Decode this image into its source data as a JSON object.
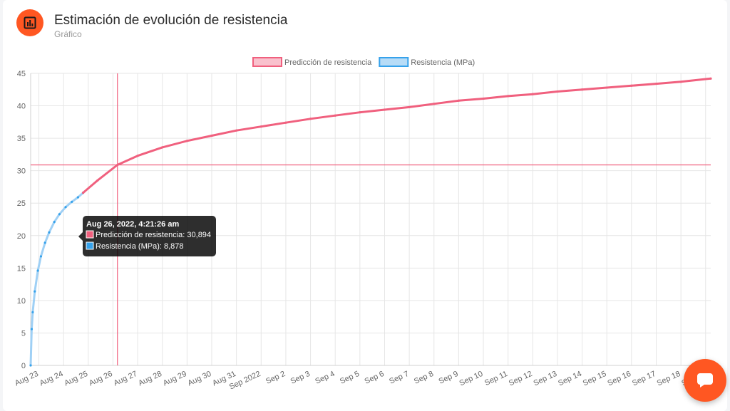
{
  "header": {
    "title": "Estimación de evolución de resistencia",
    "subtitle": "Gráfico",
    "icon": "bar-chart-icon"
  },
  "fab": {
    "icon": "chat-bubble-icon"
  },
  "colors": {
    "accent": "#ff5722",
    "prediction": "#f0607e",
    "resistance": "#36a2eb"
  },
  "chart_data": {
    "type": "line",
    "legend": [
      "Predicción de resistencia",
      "Resistencia (MPa)"
    ],
    "legend_position": "top-center",
    "grid": true,
    "yticks": [
      "0",
      "5",
      "10",
      "15",
      "20",
      "25",
      "30",
      "35",
      "40",
      "45"
    ],
    "ylim": [
      0,
      45
    ],
    "xlim": [
      "2022-08-22T16:00",
      "2022-09-19T05:00"
    ],
    "xticks": [
      "Aug 23",
      "Aug 24",
      "Aug 25",
      "Aug 26",
      "Aug 27",
      "Aug 28",
      "Aug 29",
      "Aug 30",
      "Aug 31",
      "Sep 2022",
      "Sep 2",
      "Sep 3",
      "Sep 4",
      "Sep 5",
      "Sep 6",
      "Sep 7",
      "Sep 8",
      "Sep 9",
      "Sep 10",
      "Sep 11",
      "Sep 12",
      "Sep 13",
      "Sep 14",
      "Sep 15",
      "Sep 16",
      "Sep 17",
      "Sep 18",
      "Sep 19"
    ],
    "xtick_dates": [
      "2022-08-23",
      "2022-08-24",
      "2022-08-25",
      "2022-08-26",
      "2022-08-27",
      "2022-08-28",
      "2022-08-29",
      "2022-08-30",
      "2022-08-31",
      "2022-09-01",
      "2022-09-02",
      "2022-09-03",
      "2022-09-04",
      "2022-09-05",
      "2022-09-06",
      "2022-09-07",
      "2022-09-08",
      "2022-09-09",
      "2022-09-10",
      "2022-09-11",
      "2022-09-12",
      "2022-09-13",
      "2022-09-14",
      "2022-09-15",
      "2022-09-16",
      "2022-09-17",
      "2022-09-18",
      "2022-09-19"
    ],
    "series": [
      {
        "name": "Resistencia (MPa)",
        "color": "#36a2eb",
        "points": [
          {
            "x": "2022-08-22T16:00",
            "y": 0
          },
          {
            "x": "2022-08-22T17:00",
            "y": 5.6
          },
          {
            "x": "2022-08-22T18:00",
            "y": 8.2
          },
          {
            "x": "2022-08-22T20:00",
            "y": 11.4
          },
          {
            "x": "2022-08-22T23:00",
            "y": 14.6
          },
          {
            "x": "2022-08-23T02:00",
            "y": 16.8
          },
          {
            "x": "2022-08-23T06:00",
            "y": 18.9
          },
          {
            "x": "2022-08-23T10:00",
            "y": 20.5
          },
          {
            "x": "2022-08-23T15:00",
            "y": 22.1
          },
          {
            "x": "2022-08-23T20:00",
            "y": 23.3
          },
          {
            "x": "2022-08-24T02:00",
            "y": 24.4
          },
          {
            "x": "2022-08-24T08:00",
            "y": 25.2
          },
          {
            "x": "2022-08-24T14:00",
            "y": 25.9
          },
          {
            "x": "2022-08-24T19:00",
            "y": 26.6
          }
        ]
      },
      {
        "name": "Predicción de resistencia",
        "color": "#f0607e",
        "points": [
          {
            "x": "2022-08-24T19:00",
            "y": 26.6
          },
          {
            "x": "2022-08-25T09:00",
            "y": 28.5
          },
          {
            "x": "2022-08-26T04:21",
            "y": 30.9
          },
          {
            "x": "2022-08-27T00:00",
            "y": 32.3
          },
          {
            "x": "2022-08-28T00:00",
            "y": 33.6
          },
          {
            "x": "2022-08-29T00:00",
            "y": 34.6
          },
          {
            "x": "2022-08-30T00:00",
            "y": 35.4
          },
          {
            "x": "2022-08-31T00:00",
            "y": 36.2
          },
          {
            "x": "2022-09-01T00:00",
            "y": 36.8
          },
          {
            "x": "2022-09-02T00:00",
            "y": 37.4
          },
          {
            "x": "2022-09-03T00:00",
            "y": 38.0
          },
          {
            "x": "2022-09-04T00:00",
            "y": 38.5
          },
          {
            "x": "2022-09-05T00:00",
            "y": 39.0
          },
          {
            "x": "2022-09-06T00:00",
            "y": 39.4
          },
          {
            "x": "2022-09-07T00:00",
            "y": 39.8
          },
          {
            "x": "2022-09-08T00:00",
            "y": 40.3
          },
          {
            "x": "2022-09-09T00:00",
            "y": 40.8
          },
          {
            "x": "2022-09-10T00:00",
            "y": 41.1
          },
          {
            "x": "2022-09-11T00:00",
            "y": 41.5
          },
          {
            "x": "2022-09-12T00:00",
            "y": 41.8
          },
          {
            "x": "2022-09-13T00:00",
            "y": 42.2
          },
          {
            "x": "2022-09-14T00:00",
            "y": 42.5
          },
          {
            "x": "2022-09-15T00:00",
            "y": 42.8
          },
          {
            "x": "2022-09-16T00:00",
            "y": 43.1
          },
          {
            "x": "2022-09-17T00:00",
            "y": 43.4
          },
          {
            "x": "2022-09-18T00:00",
            "y": 43.7
          },
          {
            "x": "2022-09-19T05:00",
            "y": 44.2
          }
        ]
      }
    ],
    "crosshair": {
      "x": "2022-08-26T04:21:26",
      "y": 30.894
    },
    "tooltip": {
      "title": "Aug 26, 2022, 4:21:26 am",
      "lines": [
        {
          "label": "Predicción de resistencia: 30,894",
          "color": "#f0607e"
        },
        {
          "label": "Resistencia (MPa): 8,878",
          "color": "#36a2eb"
        }
      ]
    }
  }
}
